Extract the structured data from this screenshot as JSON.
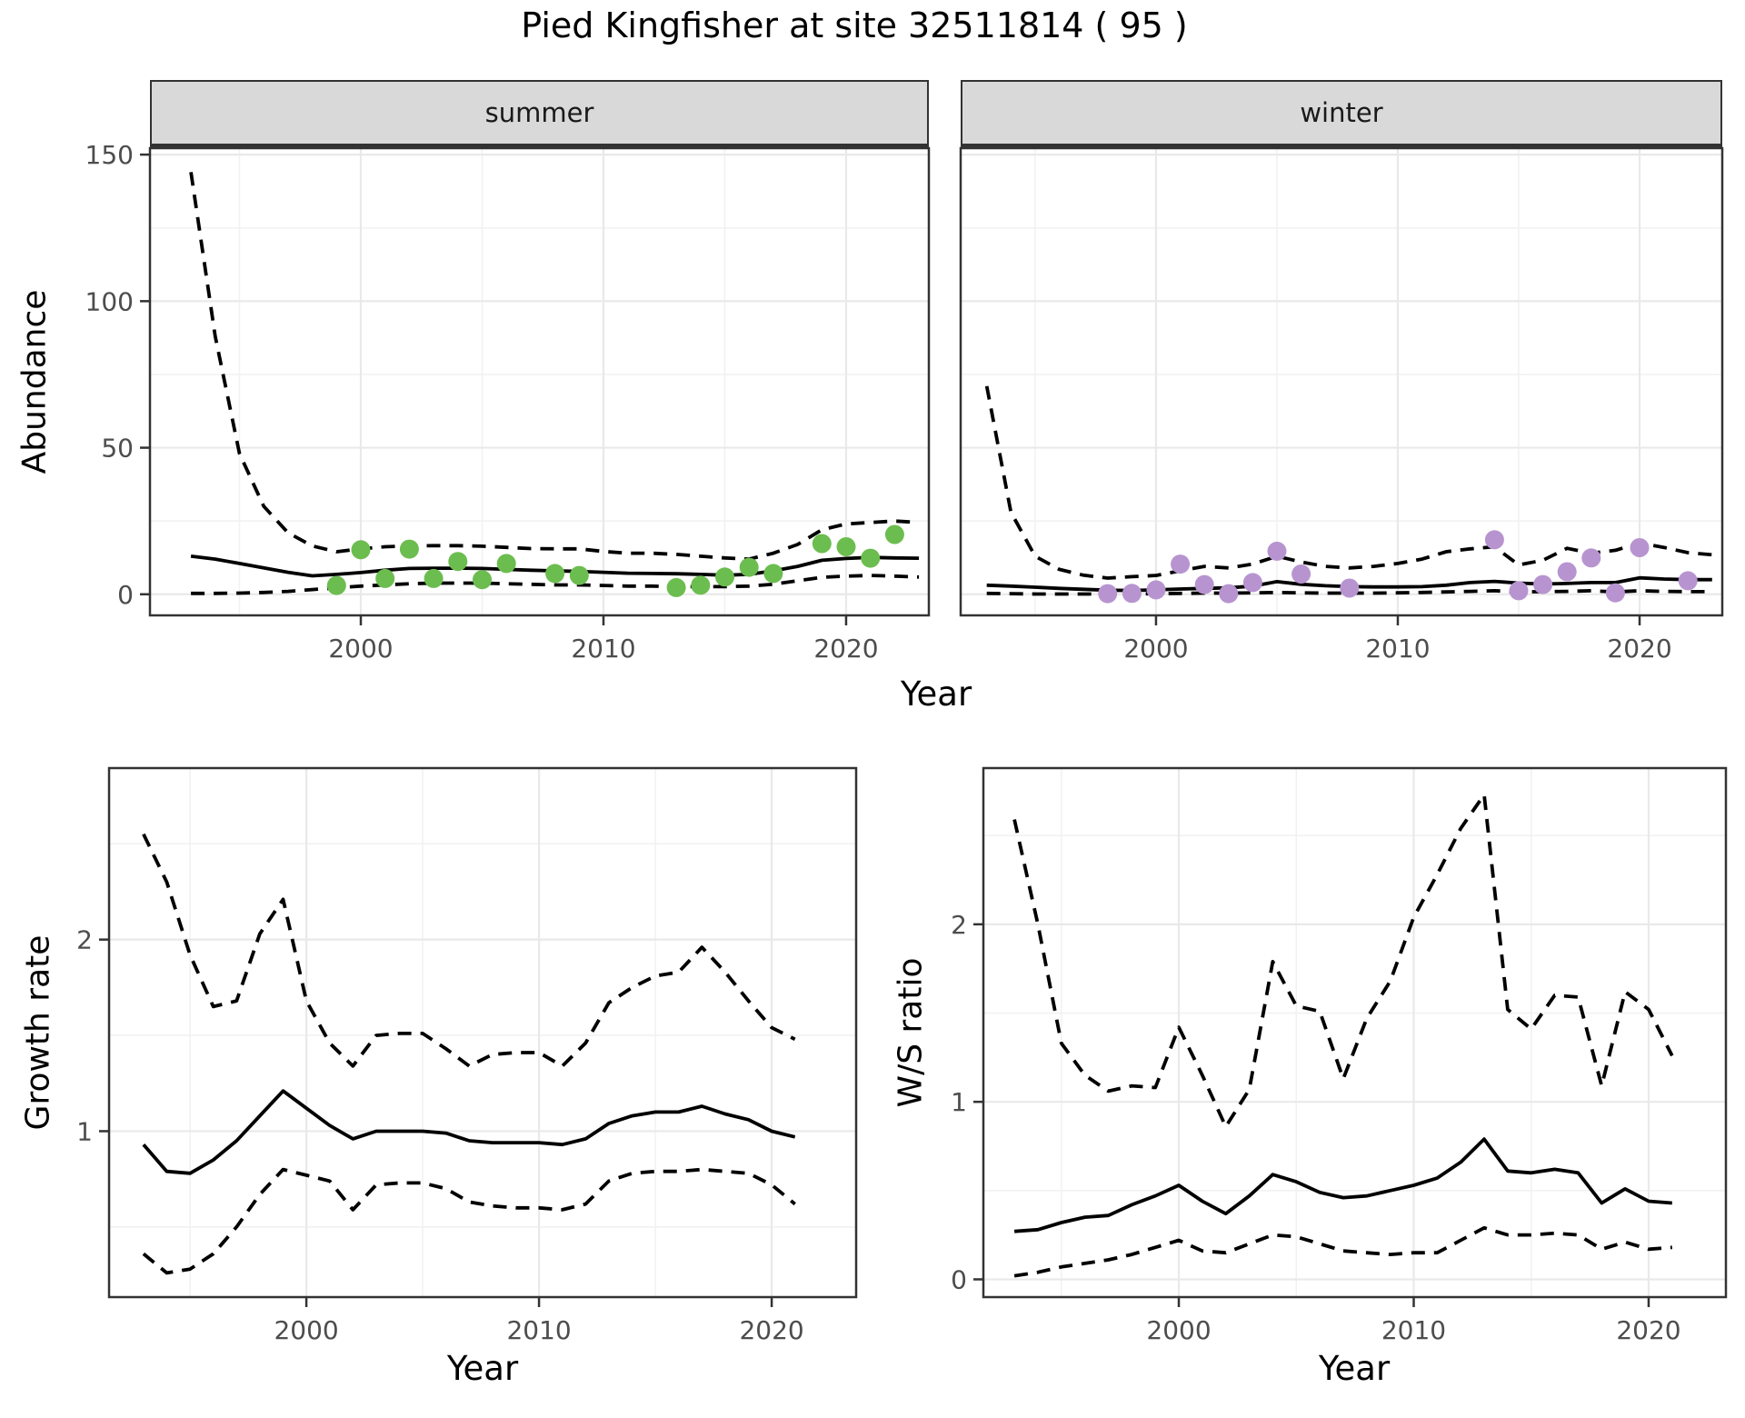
{
  "title": "Pied Kingfisher at site 32511814 ( 95 )",
  "colors": {
    "summer_point": "#6cbd4f",
    "winter_point": "#b794d0",
    "line": "#000000",
    "grid_major": "#e9e9e9",
    "grid_minor": "#f1f1f1",
    "panel_border": "#333333",
    "strip_bg": "#d9d9d9",
    "tick_text": "#4d4d4d"
  },
  "chart_data": [
    {
      "type": "line",
      "id": "abundance-summer",
      "facet_label": "summer",
      "ylabel": "Abundance",
      "xlabel": "Year",
      "xlim": [
        1991.31,
        2023.41
      ],
      "ylim": [
        -7.2,
        152.2
      ],
      "x_ticks": [
        2000,
        2010,
        2020
      ],
      "x_minor": [
        1995,
        2005,
        2015
      ],
      "y_ticks": [
        0,
        50,
        100,
        150
      ],
      "y_minor": [
        25,
        75,
        125
      ],
      "x": [
        1993,
        1994,
        1995,
        1996,
        1997,
        1998,
        1999,
        2000,
        2001,
        2002,
        2003,
        2004,
        2005,
        2006,
        2007,
        2008,
        2009,
        2010,
        2011,
        2012,
        2013,
        2014,
        2015,
        2016,
        2017,
        2018,
        2019,
        2020,
        2021,
        2022,
        2023
      ],
      "series": [
        {
          "name": "mean estimate",
          "style": "solid",
          "y": [
            13,
            12,
            10.5,
            9,
            7.5,
            6.3,
            6.8,
            7.4,
            8.2,
            8.8,
            8.9,
            8.9,
            8.8,
            8.5,
            8.2,
            8.0,
            7.8,
            7.5,
            7.2,
            7.1,
            7.0,
            6.8,
            6.5,
            6.8,
            8.0,
            9.5,
            11.6,
            12.2,
            12.6,
            12.4,
            12.3
          ]
        },
        {
          "name": "upper 95% CI",
          "style": "dashed",
          "y": [
            144,
            88,
            48,
            30,
            21,
            16.5,
            14.5,
            15.5,
            16.2,
            16.5,
            16.6,
            16.6,
            16.4,
            16.0,
            15.6,
            15.5,
            15.5,
            14.6,
            14.0,
            14.0,
            13.6,
            13.0,
            12.4,
            12.0,
            14.0,
            17.0,
            22,
            24,
            24.5,
            25,
            24.5
          ]
        },
        {
          "name": "lower 95% CI",
          "style": "dashed",
          "y": [
            0.3,
            0.3,
            0.4,
            0.6,
            1.0,
            1.6,
            2.2,
            2.8,
            3.2,
            3.6,
            3.8,
            3.8,
            3.8,
            3.6,
            3.4,
            3.2,
            3.2,
            3.0,
            2.8,
            2.8,
            2.6,
            2.6,
            2.6,
            2.8,
            3.4,
            4.6,
            5.8,
            6.2,
            6.4,
            6.2,
            5.9
          ]
        }
      ],
      "points": {
        "name": "summer observations",
        "color": "#6cbd4f",
        "x": [
          1999,
          2000,
          2001,
          2002,
          2003,
          2004,
          2005,
          2006,
          2008,
          2009,
          2013,
          2014,
          2015,
          2016,
          2017,
          2019,
          2020,
          2021,
          2022
        ],
        "y": [
          3.0,
          15.2,
          5.4,
          15.4,
          5.4,
          11.2,
          5.0,
          10.5,
          7.1,
          6.4,
          2.3,
          3.1,
          5.9,
          9.2,
          7.1,
          17.3,
          16.2,
          12.3,
          20.4
        ]
      }
    },
    {
      "type": "line",
      "id": "abundance-winter",
      "facet_label": "winter",
      "ylabel": "Abundance",
      "xlabel": "Year",
      "xlim": [
        1991.92,
        2023.42
      ],
      "ylim": [
        -7.2,
        152.2
      ],
      "x_ticks": [
        2000,
        2010,
        2020
      ],
      "x_minor": [
        1995,
        2005,
        2015
      ],
      "y_ticks": [
        0,
        50,
        100,
        150
      ],
      "y_minor": [
        25,
        75,
        125
      ],
      "x": [
        1993,
        1994,
        1995,
        1996,
        1997,
        1998,
        1999,
        2000,
        2001,
        2002,
        2003,
        2004,
        2005,
        2006,
        2007,
        2008,
        2009,
        2010,
        2011,
        2012,
        2013,
        2014,
        2015,
        2016,
        2017,
        2018,
        2019,
        2020,
        2021,
        2022,
        2023
      ],
      "series": [
        {
          "name": "mean estimate",
          "style": "solid",
          "y": [
            3.1,
            2.8,
            2.4,
            2.0,
            1.7,
            1.4,
            1.3,
            1.5,
            1.8,
            2.0,
            2.2,
            2.8,
            4.3,
            3.4,
            2.9,
            2.6,
            2.5,
            2.5,
            2.6,
            3.1,
            4.0,
            4.4,
            3.8,
            3.5,
            3.7,
            4.0,
            4.0,
            5.6,
            5.2,
            5.0,
            5.0
          ]
        },
        {
          "name": "upper 95% CI",
          "style": "dashed",
          "y": [
            71,
            28,
            13,
            8.5,
            6.5,
            5.5,
            6.0,
            6.4,
            8.0,
            9.5,
            9.0,
            10.3,
            13,
            11,
            9.5,
            9.0,
            9.5,
            10.5,
            12,
            14.5,
            15.5,
            16.2,
            10,
            11.6,
            15.7,
            14,
            15,
            17.5,
            16,
            14.2,
            13.5
          ]
        },
        {
          "name": "lower 95% CI",
          "style": "dashed",
          "y": [
            0.3,
            0.2,
            0.1,
            0.1,
            0.1,
            0.1,
            0.1,
            0.2,
            0.3,
            0.4,
            0.4,
            0.5,
            0.6,
            0.5,
            0.4,
            0.4,
            0.4,
            0.5,
            0.6,
            0.8,
            1.0,
            1.2,
            0.8,
            0.9,
            1.0,
            1.2,
            0.8,
            1.2,
            1.0,
            0.9,
            0.9
          ]
        }
      ],
      "points": {
        "name": "winter observations",
        "color": "#b794d0",
        "x": [
          1998,
          1999,
          2000,
          2001,
          2002,
          2003,
          2004,
          2005,
          2006,
          2008,
          2014,
          2015,
          2016,
          2017,
          2018,
          2019,
          2020,
          2022
        ],
        "y": [
          0.2,
          0.3,
          1.5,
          10.3,
          3.3,
          0.2,
          4.0,
          14.7,
          6.9,
          2.1,
          18.6,
          1.2,
          3.3,
          7.7,
          12.4,
          0.5,
          15.9,
          4.6
        ]
      }
    },
    {
      "type": "line",
      "id": "growth-rate",
      "ylabel": "Growth rate",
      "xlabel": "Year",
      "xlim": [
        1991.52,
        2023.63
      ],
      "ylim": [
        0.134,
        2.895
      ],
      "x_ticks": [
        2000,
        2010,
        2020
      ],
      "x_minor": [
        1995,
        2005,
        2015
      ],
      "y_ticks": [
        1,
        2
      ],
      "y_minor": [
        0.5,
        1.5,
        2.5
      ],
      "x": [
        1993,
        1994,
        1995,
        1996,
        1997,
        1998,
        1999,
        2000,
        2001,
        2002,
        2003,
        2004,
        2005,
        2006,
        2007,
        2008,
        2009,
        2010,
        2011,
        2012,
        2013,
        2014,
        2015,
        2016,
        2017,
        2018,
        2019,
        2020,
        2021
      ],
      "series": [
        {
          "name": "mean estimate",
          "style": "solid",
          "y": [
            0.93,
            0.79,
            0.78,
            0.85,
            0.95,
            1.08,
            1.21,
            1.12,
            1.03,
            0.96,
            1.0,
            1.0,
            1.0,
            0.99,
            0.95,
            0.94,
            0.94,
            0.94,
            0.93,
            0.96,
            1.04,
            1.08,
            1.1,
            1.1,
            1.13,
            1.09,
            1.06,
            1.0,
            0.97
          ]
        },
        {
          "name": "upper 95% CI",
          "style": "dashed",
          "y": [
            2.55,
            2.3,
            1.92,
            1.65,
            1.68,
            2.03,
            2.21,
            1.68,
            1.46,
            1.34,
            1.5,
            1.51,
            1.51,
            1.43,
            1.34,
            1.4,
            1.41,
            1.41,
            1.34,
            1.46,
            1.67,
            1.75,
            1.81,
            1.83,
            1.96,
            1.83,
            1.68,
            1.54,
            1.48
          ]
        },
        {
          "name": "lower 95% CI",
          "style": "dashed",
          "y": [
            0.36,
            0.26,
            0.28,
            0.36,
            0.5,
            0.67,
            0.8,
            0.77,
            0.74,
            0.59,
            0.72,
            0.73,
            0.73,
            0.7,
            0.63,
            0.61,
            0.6,
            0.6,
            0.59,
            0.62,
            0.74,
            0.78,
            0.79,
            0.79,
            0.8,
            0.79,
            0.78,
            0.72,
            0.62
          ]
        }
      ]
    },
    {
      "type": "line",
      "id": "ws-ratio",
      "ylabel": "W/S ratio",
      "xlabel": "Year",
      "xlim": [
        1991.68,
        2023.29
      ],
      "ylim": [
        -0.1,
        2.88
      ],
      "x_ticks": [
        2000,
        2010,
        2020
      ],
      "x_minor": [
        1995,
        2005,
        2015
      ],
      "y_ticks": [
        0,
        1,
        2
      ],
      "y_minor": [
        0.5,
        1.5,
        2.5
      ],
      "x": [
        1993,
        1994,
        1995,
        1996,
        1997,
        1998,
        1999,
        2000,
        2001,
        2002,
        2003,
        2004,
        2005,
        2006,
        2007,
        2008,
        2009,
        2010,
        2011,
        2012,
        2013,
        2014,
        2015,
        2016,
        2017,
        2018,
        2019,
        2020,
        2021
      ],
      "series": [
        {
          "name": "mean estimate",
          "style": "solid",
          "y": [
            0.27,
            0.28,
            0.32,
            0.35,
            0.36,
            0.42,
            0.47,
            0.53,
            0.44,
            0.37,
            0.47,
            0.59,
            0.55,
            0.49,
            0.46,
            0.47,
            0.5,
            0.53,
            0.57,
            0.66,
            0.79,
            0.61,
            0.6,
            0.62,
            0.6,
            0.43,
            0.51,
            0.44,
            0.43
          ]
        },
        {
          "name": "upper 95% CI",
          "style": "dashed",
          "y": [
            2.59,
            2.0,
            1.33,
            1.15,
            1.06,
            1.09,
            1.08,
            1.42,
            1.15,
            0.86,
            1.07,
            1.79,
            1.54,
            1.51,
            1.13,
            1.47,
            1.68,
            2.04,
            2.28,
            2.54,
            2.73,
            1.52,
            1.41,
            1.6,
            1.59,
            1.09,
            1.62,
            1.52,
            1.26
          ]
        },
        {
          "name": "lower 95% CI",
          "style": "dashed",
          "y": [
            0.02,
            0.04,
            0.07,
            0.09,
            0.11,
            0.14,
            0.18,
            0.22,
            0.16,
            0.15,
            0.2,
            0.25,
            0.24,
            0.2,
            0.16,
            0.15,
            0.14,
            0.15,
            0.15,
            0.22,
            0.29,
            0.25,
            0.25,
            0.26,
            0.25,
            0.17,
            0.21,
            0.17,
            0.18
          ]
        }
      ]
    }
  ]
}
